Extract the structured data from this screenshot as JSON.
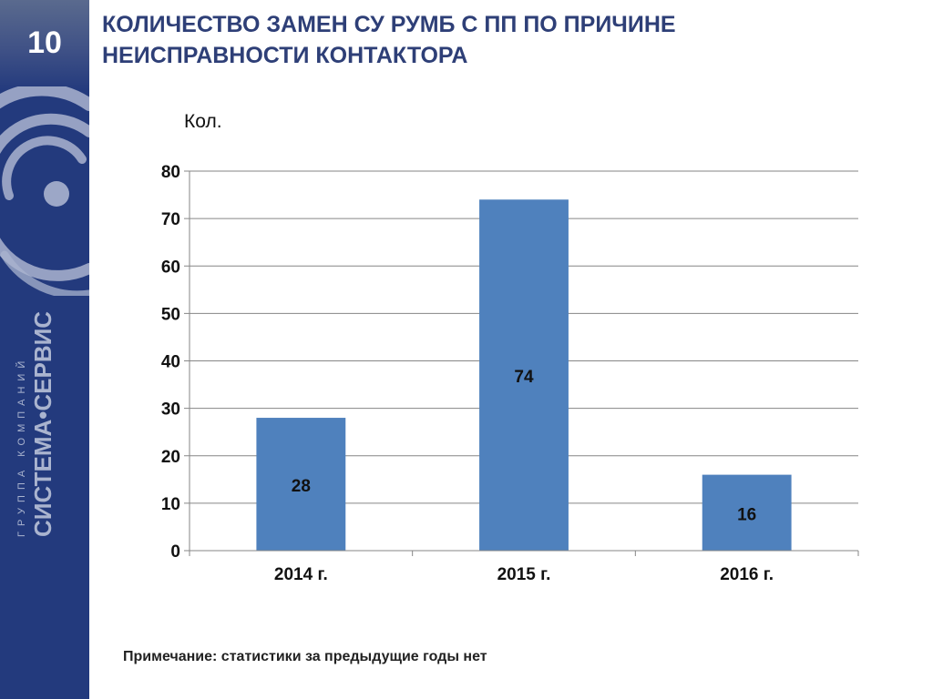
{
  "slide": {
    "number": "10",
    "title_lines": [
      "КОЛИЧЕСТВО ЗАМЕН СУ РУМБ С ПП ПО ПРИЧИНЕ",
      "НЕИСПРАВНОСТИ КОНТАКТОРА"
    ],
    "note": "Примечание: статистики за предыдущие годы нет",
    "brand_small": "ГРУППА КОМПАНИЙ",
    "brand_big": "СИСТЕМА•СЕРВИС"
  },
  "colors": {
    "sidebar": "#233a7d",
    "title": "#2e3f77",
    "bar": "#4f81bd",
    "axis": "#868686",
    "grid": "#868686"
  },
  "chart_data": {
    "type": "bar",
    "ylabel": "Кол.",
    "categories": [
      "2014 г.",
      "2015 г.",
      "2016 г."
    ],
    "values": [
      28,
      74,
      16
    ],
    "data_labels": [
      "28",
      "74",
      "16"
    ],
    "ylim": [
      0,
      80
    ],
    "yticks": [
      0,
      10,
      20,
      30,
      40,
      50,
      60,
      70,
      80
    ],
    "grid": true,
    "legend": "none"
  }
}
